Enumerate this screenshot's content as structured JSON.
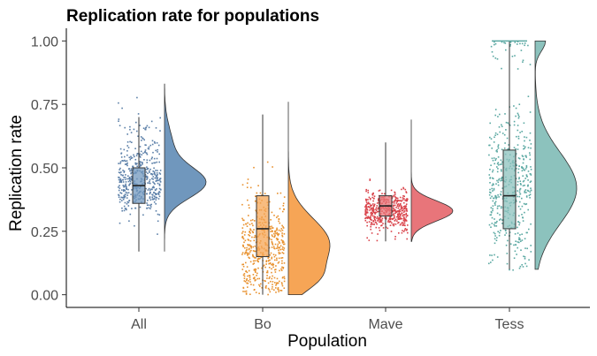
{
  "chart_data": {
    "type": "raincloud",
    "title": "Replication rate for populations",
    "xlabel": "Population",
    "ylabel": "Replication rate",
    "categories": [
      "All",
      "Bo",
      "Mave",
      "Tess"
    ],
    "ylim": [
      -0.05,
      1.05
    ],
    "yticks": [
      0.0,
      0.25,
      0.5,
      0.75,
      1.0
    ],
    "ytick_labels": [
      "0.00",
      "0.25",
      "0.50",
      "0.75",
      "1.00"
    ],
    "grid": false,
    "legend": "none",
    "series": [
      {
        "category": "All",
        "color": "#5b7fa8",
        "fill": "#7097bd",
        "box": {
          "min": 0.17,
          "q1": 0.36,
          "median": 0.43,
          "q3": 0.5,
          "max": 0.7
        },
        "density_range": [
          0.17,
          0.83
        ],
        "density_peaks": [
          {
            "y": 0.44,
            "sd": 0.06,
            "w": 1.0
          },
          {
            "y": 0.58,
            "sd": 0.08,
            "w": 0.2
          }
        ],
        "points_range": [
          0.17,
          0.83
        ]
      },
      {
        "category": "Bo",
        "color": "#e8912e",
        "fill": "#f6a556",
        "box": {
          "min": 0.0,
          "q1": 0.15,
          "median": 0.26,
          "q3": 0.39,
          "max": 0.71
        },
        "density_range": [
          0.0,
          0.76
        ],
        "density_peaks": [
          {
            "y": 0.2,
            "sd": 0.1,
            "w": 1.0
          },
          {
            "y": 0.06,
            "sd": 0.05,
            "w": 0.4
          }
        ],
        "points_range": [
          0.0,
          0.76
        ]
      },
      {
        "category": "Mave",
        "color": "#d9434a",
        "fill": "#e8757a",
        "box": {
          "min": 0.21,
          "q1": 0.31,
          "median": 0.35,
          "q3": 0.39,
          "max": 0.6
        },
        "density_range": [
          0.21,
          0.69
        ],
        "density_peaks": [
          {
            "y": 0.33,
            "sd": 0.04,
            "w": 1.0
          }
        ],
        "points_range": [
          0.21,
          0.62
        ]
      },
      {
        "category": "Tess",
        "color": "#5aa8a2",
        "fill": "#8cc2bd",
        "box": {
          "min": 0.1,
          "q1": 0.26,
          "median": 0.39,
          "q3": 0.57,
          "max": 1.0
        },
        "density_range": [
          0.1,
          1.0
        ],
        "density_peaks": [
          {
            "y": 0.42,
            "sd": 0.14,
            "w": 1.0
          },
          {
            "y": 1.0,
            "sd": 0.04,
            "w": 0.25
          }
        ],
        "points_range": [
          0.1,
          1.0
        ]
      }
    ]
  }
}
